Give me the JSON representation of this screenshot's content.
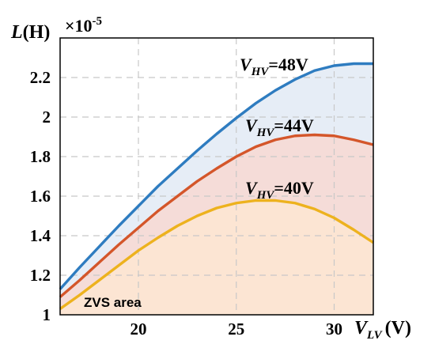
{
  "chart_data": {
    "type": "line",
    "x": [
      16,
      17,
      18,
      19,
      20,
      21,
      22,
      23,
      24,
      25,
      26,
      27,
      28,
      29,
      30,
      31,
      32
    ],
    "series": [
      {
        "name": "V_HV=48V",
        "label": {
          "base": "V",
          "sub": "HV",
          "suffix": "=48V"
        },
        "color": "#2e7cc0",
        "fill": "#e6edf6",
        "values": [
          1.13,
          1.24,
          1.345,
          1.45,
          1.55,
          1.65,
          1.74,
          1.83,
          1.915,
          1.995,
          2.07,
          2.135,
          2.19,
          2.235,
          2.26,
          2.27,
          2.27
        ]
      },
      {
        "name": "V_HV=44V",
        "label": {
          "base": "V",
          "sub": "HV",
          "suffix": "=44V"
        },
        "color": "#d4562a",
        "fill": "#f5dcd8",
        "values": [
          1.09,
          1.175,
          1.265,
          1.355,
          1.44,
          1.525,
          1.6,
          1.675,
          1.74,
          1.8,
          1.85,
          1.885,
          1.905,
          1.91,
          1.905,
          1.885,
          1.86
        ]
      },
      {
        "name": "V_HV=40V",
        "label": {
          "base": "V",
          "sub": "HV",
          "suffix": "=40V"
        },
        "color": "#edb21e",
        "fill": "#fce5d3",
        "values": [
          1.03,
          1.1,
          1.175,
          1.25,
          1.325,
          1.39,
          1.45,
          1.5,
          1.54,
          1.565,
          1.578,
          1.578,
          1.565,
          1.535,
          1.49,
          1.43,
          1.365
        ]
      }
    ],
    "ylabel": {
      "main": "L",
      "unit": "(H)",
      "multiplier": "×10",
      "exponent": "-5"
    },
    "xlabel": {
      "main": "V",
      "sub": "LV",
      "unit": "(V)"
    },
    "xticks": [
      "20",
      "25",
      "30"
    ],
    "yticks": [
      "1",
      "1.2",
      "1.4",
      "1.6",
      "1.8",
      "2",
      "2.2"
    ],
    "xlim": [
      16,
      32
    ],
    "ylim": [
      1,
      2.4
    ],
    "grid": true,
    "annotation": "ZVS area"
  }
}
